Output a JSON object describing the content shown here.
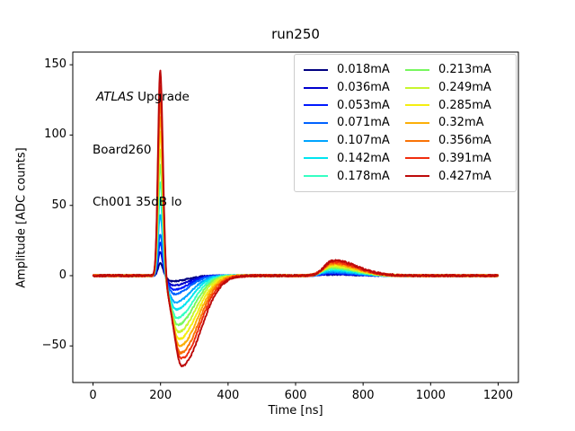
{
  "figure": {
    "title": "run250"
  },
  "annotation": {
    "line1_italic": "ATLAS",
    "line1_rest": " Upgrade",
    "line2": "Board260",
    "line3": "Ch001 35dB lo"
  },
  "chart_data": {
    "type": "line",
    "title": "run250",
    "xlabel": "Time [ns]",
    "ylabel": "Amplitude [ADC counts]",
    "xlim": [
      -60,
      1260
    ],
    "ylim": [
      -76,
      159
    ],
    "xticks": [
      0,
      200,
      400,
      600,
      800,
      1000,
      1200
    ],
    "yticks": [
      -50,
      0,
      50,
      100,
      150
    ],
    "grid": false,
    "legend_position": "upper right",
    "legend_ncol": 2,
    "annotation_lines": [
      "ATLAS Upgrade",
      "Board260",
      "Ch001 35dB lo"
    ],
    "pulse_shape": {
      "baseline": 0,
      "peak_time_ns": 199,
      "trough_time_ns_range": [
        235,
        263
      ],
      "recovery_time_ns": 450,
      "reflection_bump_time_ns": 708,
      "flat_after_ns": 900,
      "time_range_ns": [
        0,
        1200
      ]
    },
    "series": [
      {
        "label": "0.018mA",
        "current_mA": 0.018,
        "color": "#000080",
        "peak": 9,
        "trough": -4,
        "bump": 0.8
      },
      {
        "label": "0.036mA",
        "current_mA": 0.036,
        "color": "#0000cd",
        "peak": 17,
        "trough": -7,
        "bump": 1.2
      },
      {
        "label": "0.053mA",
        "current_mA": 0.053,
        "color": "#0019ff",
        "peak": 24,
        "trough": -10,
        "bump": 1.7
      },
      {
        "label": "0.071mA",
        "current_mA": 0.071,
        "color": "#0062ff",
        "peak": 30,
        "trough": -13,
        "bump": 2.2
      },
      {
        "label": "0.107mA",
        "current_mA": 0.107,
        "color": "#00a4ff",
        "peak": 44,
        "trough": -19,
        "bump": 3.1
      },
      {
        "label": "0.142mA",
        "current_mA": 0.142,
        "color": "#00e5f0",
        "peak": 56,
        "trough": -24,
        "bump": 4.0
      },
      {
        "label": "0.178mA",
        "current_mA": 0.178,
        "color": "#35ffc3",
        "peak": 68,
        "trough": -30,
        "bump": 4.9
      },
      {
        "label": "0.213mA",
        "current_mA": 0.213,
        "color": "#77f75e",
        "peak": 80,
        "trough": -35,
        "bump": 5.7
      },
      {
        "label": "0.249mA",
        "current_mA": 0.249,
        "color": "#c8f52e",
        "peak": 92,
        "trough": -40,
        "bump": 6.5
      },
      {
        "label": "0.285mA",
        "current_mA": 0.285,
        "color": "#f5ee11",
        "peak": 104,
        "trough": -45,
        "bump": 7.4
      },
      {
        "label": "0.32mA",
        "current_mA": 0.32,
        "color": "#fcaf08",
        "peak": 115,
        "trough": -50,
        "bump": 8.2
      },
      {
        "label": "0.356mA",
        "current_mA": 0.356,
        "color": "#f97306",
        "peak": 126,
        "trough": -55,
        "bump": 9.0
      },
      {
        "label": "0.391mA",
        "current_mA": 0.391,
        "color": "#f02d0d",
        "peak": 137,
        "trough": -59,
        "bump": 9.8
      },
      {
        "label": "0.427mA",
        "current_mA": 0.427,
        "color": "#bd0a0a",
        "peak": 148,
        "trough": -64,
        "bump": 10.8
      }
    ]
  }
}
